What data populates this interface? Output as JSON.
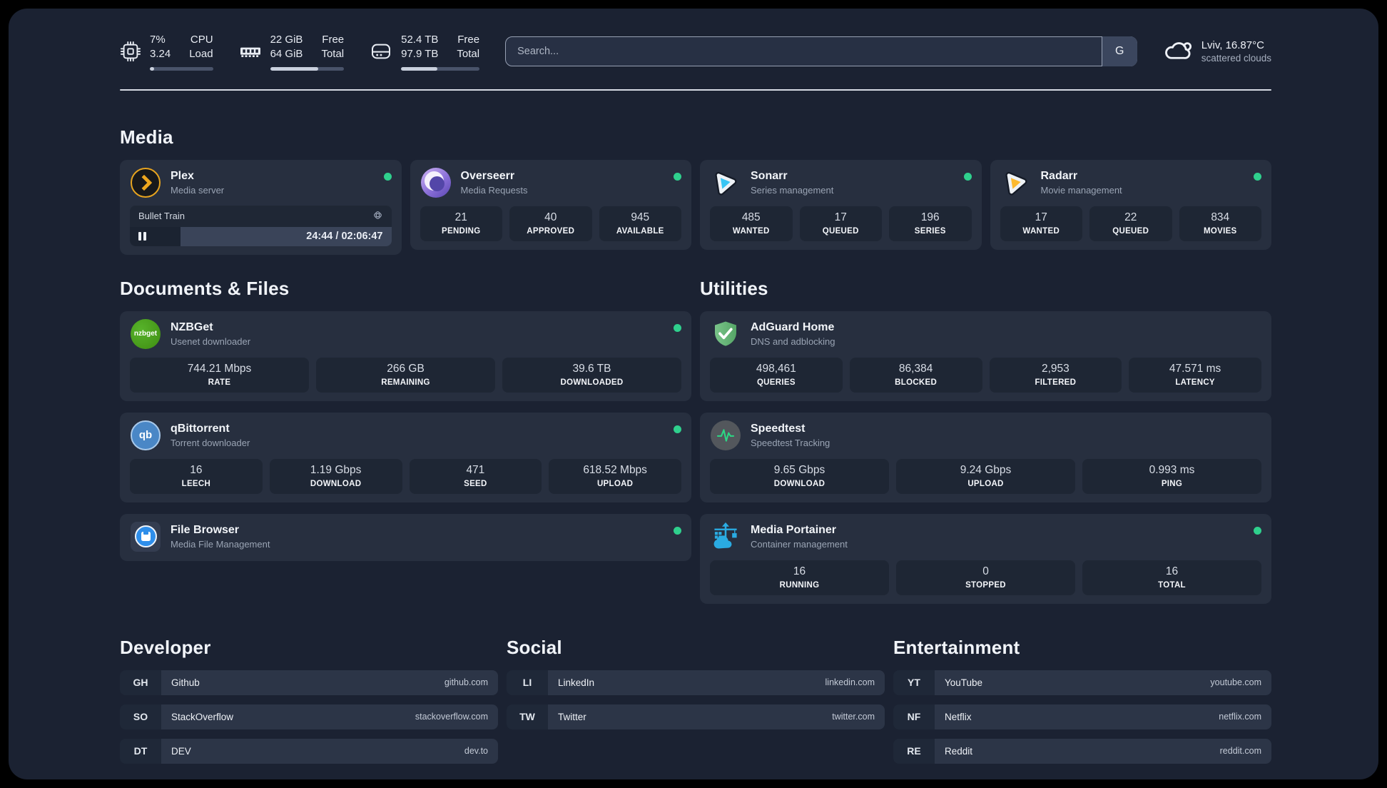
{
  "colors": {
    "status_green": "#2fd08d",
    "plex_gold": "#e7a41f",
    "sonarr_cyan": "#38c5f4",
    "radarr_orange": "#fdb92e",
    "nzbget_green": "#44a10f",
    "qbittorrent_blue": "#4a87c6",
    "adguard_green": "#68b478",
    "portainer_blue": "#2aabe2",
    "speedtest_pulse": "#2bd985"
  },
  "header": {
    "stats": [
      {
        "name": "cpu",
        "icon": "cpu-icon",
        "values": [
          "7%",
          "3.24"
        ],
        "labels": [
          "CPU",
          "Load"
        ],
        "progress_pct": 7
      },
      {
        "name": "memory",
        "icon": "ram-icon",
        "values": [
          "22 GiB",
          "64 GiB"
        ],
        "labels": [
          "Free",
          "Total"
        ],
        "progress_pct": 65
      },
      {
        "name": "disk",
        "icon": "disk-icon",
        "values": [
          "52.4 TB",
          "97.9 TB"
        ],
        "labels": [
          "Free",
          "Total"
        ],
        "progress_pct": 46
      }
    ],
    "search": {
      "placeholder": "Search...",
      "provider_label": "G"
    },
    "weather": {
      "summary": "Lviv, 16.87°C",
      "condition": "scattered clouds"
    }
  },
  "icons": {
    "nzbget_label": "nzbget",
    "qbittorrent_label": "qb"
  },
  "sections": {
    "media": {
      "title": "Media",
      "plex": {
        "name": "Plex",
        "description": "Media server",
        "session": {
          "title": "Bullet Train",
          "time": "24:44 / 02:06:47",
          "progress_pct": 19.5
        }
      },
      "overseerr": {
        "name": "Overseerr",
        "description": "Media Requests",
        "stats": [
          {
            "value": "21",
            "label": "PENDING"
          },
          {
            "value": "40",
            "label": "APPROVED"
          },
          {
            "value": "945",
            "label": "AVAILABLE"
          }
        ]
      },
      "sonarr": {
        "name": "Sonarr",
        "description": "Series management",
        "stats": [
          {
            "value": "485",
            "label": "WANTED"
          },
          {
            "value": "17",
            "label": "QUEUED"
          },
          {
            "value": "196",
            "label": "SERIES"
          }
        ]
      },
      "radarr": {
        "name": "Radarr",
        "description": "Movie management",
        "stats": [
          {
            "value": "17",
            "label": "WANTED"
          },
          {
            "value": "22",
            "label": "QUEUED"
          },
          {
            "value": "834",
            "label": "MOVIES"
          }
        ]
      }
    },
    "documents": {
      "title": "Documents & Files",
      "nzbget": {
        "name": "NZBGet",
        "description": "Usenet downloader",
        "stats": [
          {
            "value": "744.21 Mbps",
            "label": "RATE"
          },
          {
            "value": "266 GB",
            "label": "REMAINING"
          },
          {
            "value": "39.6 TB",
            "label": "DOWNLOADED"
          }
        ]
      },
      "qbittorrent": {
        "name": "qBittorrent",
        "description": "Torrent downloader",
        "stats": [
          {
            "value": "16",
            "label": "LEECH"
          },
          {
            "value": "1.19 Gbps",
            "label": "DOWNLOAD"
          },
          {
            "value": "471",
            "label": "SEED"
          },
          {
            "value": "618.52 Mbps",
            "label": "UPLOAD"
          }
        ]
      },
      "filebrowser": {
        "name": "File Browser",
        "description": "Media File Management"
      }
    },
    "utilities": {
      "title": "Utilities",
      "adguard": {
        "name": "AdGuard Home",
        "description": "DNS and adblocking",
        "stats": [
          {
            "value": "498,461",
            "label": "QUERIES"
          },
          {
            "value": "86,384",
            "label": "BLOCKED"
          },
          {
            "value": "2,953",
            "label": "FILTERED"
          },
          {
            "value": "47.571 ms",
            "label": "LATENCY"
          }
        ]
      },
      "speedtest": {
        "name": "Speedtest",
        "description": "Speedtest Tracking",
        "stats": [
          {
            "value": "9.65 Gbps",
            "label": "DOWNLOAD"
          },
          {
            "value": "9.24 Gbps",
            "label": "UPLOAD"
          },
          {
            "value": "0.993 ms",
            "label": "PING"
          }
        ]
      },
      "portainer": {
        "name": "Media Portainer",
        "description": "Container management",
        "stats": [
          {
            "value": "16",
            "label": "RUNNING"
          },
          {
            "value": "0",
            "label": "STOPPED"
          },
          {
            "value": "16",
            "label": "TOTAL"
          }
        ]
      }
    }
  },
  "bookmarks": {
    "developer": {
      "title": "Developer",
      "links": [
        {
          "abbr": "GH",
          "name": "Github",
          "url": "github.com"
        },
        {
          "abbr": "SO",
          "name": "StackOverflow",
          "url": "stackoverflow.com"
        },
        {
          "abbr": "DT",
          "name": "DEV",
          "url": "dev.to"
        }
      ]
    },
    "social": {
      "title": "Social",
      "links": [
        {
          "abbr": "LI",
          "name": "LinkedIn",
          "url": "linkedin.com"
        },
        {
          "abbr": "TW",
          "name": "Twitter",
          "url": "twitter.com"
        }
      ]
    },
    "entertainment": {
      "title": "Entertainment",
      "links": [
        {
          "abbr": "YT",
          "name": "YouTube",
          "url": "youtube.com"
        },
        {
          "abbr": "NF",
          "name": "Netflix",
          "url": "netflix.com"
        },
        {
          "abbr": "RE",
          "name": "Reddit",
          "url": "reddit.com"
        }
      ]
    }
  }
}
